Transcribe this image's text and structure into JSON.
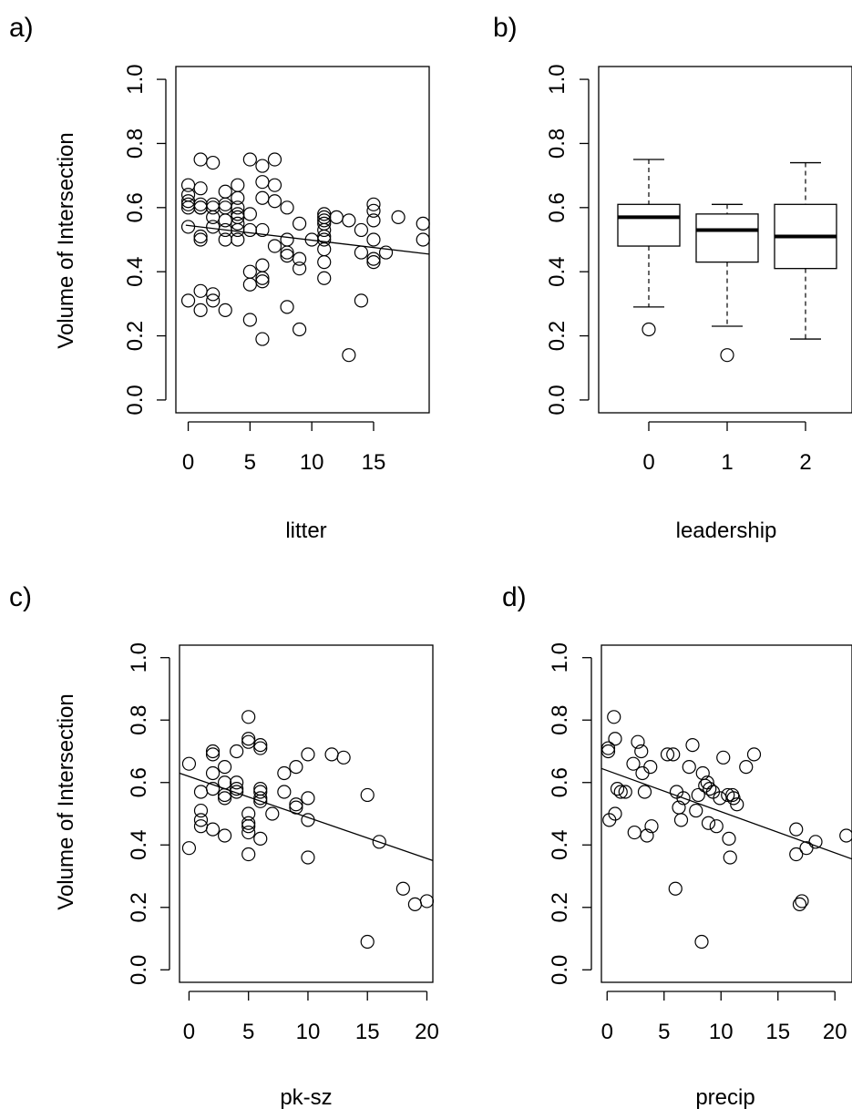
{
  "chart_data": [
    {
      "panel": "a)",
      "type": "scatter",
      "xlabel": "litter",
      "ylabel": "Volume of Intersection",
      "xlim": [
        -1,
        19.5
      ],
      "ylim": [
        -0.04,
        1.04
      ],
      "xticks": [
        "0",
        "5",
        "10",
        "15"
      ],
      "yticks": [
        "0.0",
        "0.2",
        "0.4",
        "0.6",
        "0.8",
        "1.0"
      ],
      "fit_line": {
        "x1": -0.2,
        "y1": 0.545,
        "x2": 19.5,
        "y2": 0.455
      },
      "points": {
        "x": [
          0,
          0,
          0,
          0,
          0,
          0,
          1,
          1,
          1,
          1,
          1,
          1,
          1,
          1,
          2,
          2,
          2,
          2,
          2,
          2,
          3,
          3,
          3,
          3,
          3,
          3,
          4,
          4,
          4,
          4,
          4,
          4,
          4,
          4,
          5,
          5,
          5,
          5,
          5,
          5,
          6,
          6,
          6,
          6,
          6,
          6,
          6,
          6,
          7,
          7,
          7,
          7,
          8,
          8,
          8,
          8,
          8,
          9,
          9,
          9,
          9,
          10,
          11,
          11,
          11,
          11,
          11,
          11,
          11,
          11,
          11,
          11,
          12,
          13,
          13,
          14,
          14,
          14,
          15,
          15,
          15,
          15,
          15,
          15,
          16,
          17,
          19,
          19,
          0,
          2,
          3,
          1
        ],
        "y": [
          0.67,
          0.64,
          0.62,
          0.54,
          0.31,
          0.61,
          0.75,
          0.66,
          0.6,
          0.51,
          0.5,
          0.34,
          0.28,
          0.6,
          0.74,
          0.6,
          0.57,
          0.54,
          0.33,
          0.31,
          0.65,
          0.6,
          0.56,
          0.53,
          0.5,
          0.28,
          0.67,
          0.63,
          0.6,
          0.58,
          0.57,
          0.55,
          0.53,
          0.5,
          0.75,
          0.58,
          0.53,
          0.4,
          0.36,
          0.25,
          0.73,
          0.68,
          0.63,
          0.53,
          0.42,
          0.38,
          0.37,
          0.19,
          0.75,
          0.67,
          0.62,
          0.48,
          0.6,
          0.5,
          0.46,
          0.45,
          0.29,
          0.55,
          0.44,
          0.41,
          0.22,
          0.5,
          0.58,
          0.57,
          0.56,
          0.55,
          0.53,
          0.51,
          0.5,
          0.47,
          0.43,
          0.38,
          0.57,
          0.56,
          0.14,
          0.53,
          0.46,
          0.31,
          0.61,
          0.59,
          0.56,
          0.5,
          0.44,
          0.43,
          0.46,
          0.57,
          0.55,
          0.5,
          0.6,
          0.61,
          0.61,
          0.61
        ]
      }
    },
    {
      "panel": "b)",
      "type": "box",
      "xlabel": "leadership",
      "ylabel": "",
      "ylim": [
        -0.04,
        1.04
      ],
      "xticks": [
        "0",
        "1",
        "2"
      ],
      "yticks": [
        "0.0",
        "0.2",
        "0.4",
        "0.6",
        "0.8",
        "1.0"
      ],
      "boxes": [
        {
          "x": 0,
          "whisker_low": 0.29,
          "q1": 0.48,
          "median": 0.57,
          "q3": 0.61,
          "whisker_high": 0.75,
          "outliers": [
            0.22
          ]
        },
        {
          "x": 1,
          "whisker_low": 0.23,
          "q1": 0.43,
          "median": 0.53,
          "q3": 0.58,
          "whisker_high": 0.61,
          "outliers": [
            0.14
          ]
        },
        {
          "x": 2,
          "whisker_low": 0.19,
          "q1": 0.41,
          "median": 0.51,
          "q3": 0.61,
          "whisker_high": 0.74,
          "outliers": []
        }
      ]
    },
    {
      "panel": "c)",
      "type": "scatter",
      "xlabel": "pk-sz",
      "ylabel": "Volume of Intersection",
      "xlim": [
        -0.8,
        20.5
      ],
      "ylim": [
        -0.04,
        1.04
      ],
      "xticks": [
        "0",
        "5",
        "10",
        "15",
        "20"
      ],
      "yticks": [
        "0.0",
        "0.2",
        "0.4",
        "0.6",
        "0.8",
        "1.0"
      ],
      "fit_line": {
        "x1": -0.8,
        "y1": 0.63,
        "x2": 20.5,
        "y2": 0.35
      },
      "points": {
        "x": [
          0,
          0,
          1,
          1,
          1,
          1,
          2,
          2,
          2,
          2,
          2,
          3,
          3,
          3,
          3,
          3,
          4,
          4,
          4,
          4,
          5,
          5,
          5,
          5,
          5,
          5,
          5,
          5,
          6,
          6,
          6,
          6,
          6,
          6,
          6,
          7,
          8,
          8,
          9,
          9,
          9,
          10,
          10,
          10,
          10,
          12,
          13,
          15,
          15,
          16,
          18,
          19,
          20
        ],
        "y": [
          0.66,
          0.39,
          0.57,
          0.51,
          0.48,
          0.46,
          0.7,
          0.69,
          0.63,
          0.58,
          0.45,
          0.65,
          0.6,
          0.56,
          0.55,
          0.43,
          0.7,
          0.6,
          0.58,
          0.57,
          0.81,
          0.74,
          0.73,
          0.5,
          0.47,
          0.46,
          0.44,
          0.37,
          0.72,
          0.71,
          0.58,
          0.57,
          0.55,
          0.54,
          0.42,
          0.5,
          0.63,
          0.57,
          0.65,
          0.53,
          0.52,
          0.69,
          0.55,
          0.48,
          0.36,
          0.69,
          0.68,
          0.56,
          0.09,
          0.41,
          0.26,
          0.21,
          0.22
        ]
      }
    },
    {
      "panel": "d)",
      "type": "scatter",
      "xlabel": "precip",
      "ylabel": "",
      "xlim": [
        -0.5,
        21.5
      ],
      "ylim": [
        -0.04,
        1.04
      ],
      "xticks": [
        "0",
        "5",
        "10",
        "15",
        "20"
      ],
      "yticks": [
        "0.0",
        "0.2",
        "0.4",
        "0.6",
        "0.8",
        "1.0"
      ],
      "fit_line": {
        "x1": -0.5,
        "y1": 0.645,
        "x2": 21.5,
        "y2": 0.355
      },
      "points": {
        "x": [
          0.1,
          0.1,
          0.2,
          0.6,
          0.7,
          0.7,
          0.9,
          1.2,
          1.6,
          2.3,
          2.4,
          2.7,
          3.0,
          3.1,
          3.3,
          3.5,
          3.8,
          3.9,
          5.3,
          5.8,
          6.0,
          6.1,
          6.3,
          6.5,
          6.7,
          7.2,
          7.5,
          7.8,
          8.0,
          8.3,
          8.4,
          8.6,
          8.8,
          8.9,
          9.0,
          9.3,
          9.6,
          9.9,
          10.2,
          10.6,
          10.7,
          10.8,
          11.0,
          11.1,
          11.4,
          12.2,
          12.9,
          16.6,
          16.6,
          16.9,
          17.1,
          17.5,
          18.3,
          21.0
        ],
        "y": [
          0.71,
          0.7,
          0.48,
          0.81,
          0.74,
          0.5,
          0.58,
          0.57,
          0.57,
          0.66,
          0.44,
          0.73,
          0.7,
          0.63,
          0.57,
          0.43,
          0.65,
          0.46,
          0.69,
          0.69,
          0.26,
          0.57,
          0.52,
          0.48,
          0.55,
          0.65,
          0.72,
          0.51,
          0.56,
          0.09,
          0.63,
          0.59,
          0.6,
          0.47,
          0.58,
          0.57,
          0.46,
          0.55,
          0.68,
          0.56,
          0.42,
          0.36,
          0.56,
          0.55,
          0.53,
          0.65,
          0.69,
          0.45,
          0.37,
          0.21,
          0.22,
          0.39,
          0.41,
          0.43
        ]
      }
    }
  ]
}
